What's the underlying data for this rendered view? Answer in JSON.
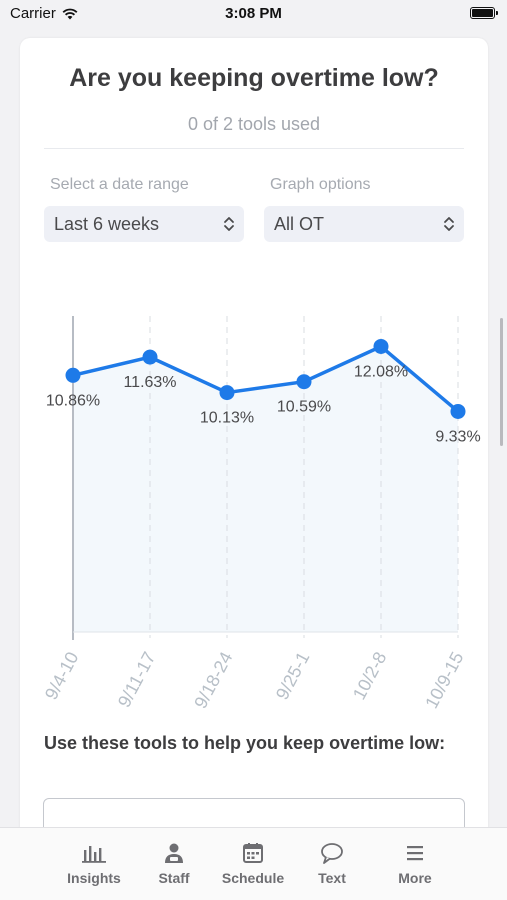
{
  "status_bar": {
    "carrier": "Carrier",
    "time": "3:08 PM"
  },
  "card": {
    "title": "Are you keeping overtime low?",
    "subtitle": "0 of 2 tools used",
    "date_range": {
      "label": "Select a date range",
      "value": "Last 6 weeks"
    },
    "graph_options": {
      "label": "Graph options",
      "value": "All OT"
    },
    "tools_heading": "Use these tools to help you keep overtime low:"
  },
  "chart_data": {
    "type": "line",
    "categories": [
      "9/4-10",
      "9/11-17",
      "9/18-24",
      "9/25-1",
      "10/2-8",
      "10/9-15"
    ],
    "values": [
      10.86,
      11.63,
      10.13,
      10.59,
      12.08,
      9.33
    ],
    "data_labels": [
      "10.86%",
      "11.63%",
      "10.13%",
      "10.59%",
      "12.08%",
      "9.33%"
    ],
    "ylim": [
      0,
      13.2
    ],
    "line_color": "#1e7ae8",
    "fill_color": "#f3f8fc",
    "grid": "vertical dashed"
  },
  "tab_bar": {
    "tabs": [
      {
        "label": "Insights",
        "icon": "bar-chart-icon"
      },
      {
        "label": "Staff",
        "icon": "staff-icon"
      },
      {
        "label": "Schedule",
        "icon": "calendar-icon"
      },
      {
        "label": "Text",
        "icon": "speech-bubble-icon"
      },
      {
        "label": "More",
        "icon": "menu-icon"
      }
    ]
  }
}
